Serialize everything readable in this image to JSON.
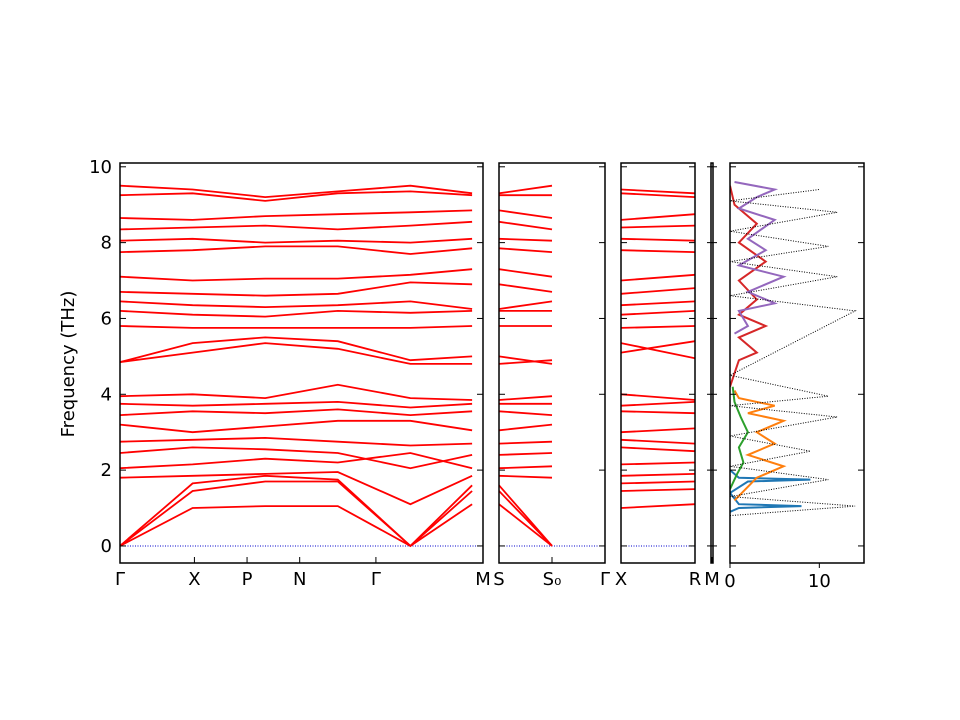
{
  "chart_data": {
    "type": "line",
    "title": "",
    "ylabel": "Frequency (THz)",
    "ylim": [
      -0.45,
      10.1
    ],
    "yticks": [
      0,
      2,
      4,
      6,
      8,
      10
    ],
    "band_color": "#ff0000",
    "zero_line_color": "#0000cc",
    "panels": [
      {
        "kind": "band",
        "xticks": [
          "Γ",
          "X",
          "P",
          "N",
          "Γ",
          "M"
        ],
        "bands": [
          {
            "x": [
              0,
              1,
              2,
              3,
              4,
              4.85
            ],
            "y": [
              0,
              1.45,
              1.7,
              1.7,
              0,
              1.45
            ]
          },
          {
            "x": [
              0,
              1,
              2,
              3,
              4,
              4.85
            ],
            "y": [
              0,
              1.65,
              1.85,
              1.75,
              0,
              1.6
            ]
          },
          {
            "x": [
              0,
              1,
              2,
              3,
              4,
              4.85
            ],
            "y": [
              0,
              1.0,
              1.05,
              1.05,
              0,
              1.1
            ]
          },
          {
            "x": [
              0,
              1,
              2,
              3,
              4,
              4.85
            ],
            "y": [
              1.8,
              1.85,
              1.9,
              1.95,
              1.1,
              1.85
            ]
          },
          {
            "x": [
              0,
              1,
              2,
              3,
              4,
              4.85
            ],
            "y": [
              2.05,
              2.15,
              2.3,
              2.2,
              2.45,
              2.05
            ]
          },
          {
            "x": [
              0,
              1,
              2,
              3,
              4,
              4.85
            ],
            "y": [
              2.45,
              2.6,
              2.55,
              2.45,
              2.05,
              2.4
            ]
          },
          {
            "x": [
              0,
              1,
              2,
              3,
              4,
              4.85
            ],
            "y": [
              2.75,
              2.8,
              2.85,
              2.75,
              2.65,
              2.7
            ]
          },
          {
            "x": [
              0,
              1,
              2,
              3,
              4,
              4.85
            ],
            "y": [
              3.2,
              3.0,
              3.15,
              3.3,
              3.3,
              3.05
            ]
          },
          {
            "x": [
              0,
              1,
              2,
              3,
              4,
              4.85
            ],
            "y": [
              3.45,
              3.55,
              3.5,
              3.6,
              3.45,
              3.55
            ]
          },
          {
            "x": [
              0,
              1,
              2,
              3,
              4,
              4.85
            ],
            "y": [
              3.75,
              3.7,
              3.75,
              3.8,
              3.65,
              3.75
            ]
          },
          {
            "x": [
              0,
              1,
              2,
              3,
              4,
              4.85
            ],
            "y": [
              3.95,
              4.0,
              3.9,
              4.25,
              3.9,
              3.85
            ]
          },
          {
            "x": [
              0,
              1,
              2,
              3,
              4,
              4.85
            ],
            "y": [
              4.85,
              5.35,
              5.5,
              5.4,
              4.9,
              5.0
            ]
          },
          {
            "x": [
              0,
              1,
              2,
              3,
              4,
              4.85
            ],
            "y": [
              4.85,
              5.1,
              5.35,
              5.2,
              4.8,
              4.8
            ]
          },
          {
            "x": [
              0,
              1,
              2,
              3,
              4,
              4.85
            ],
            "y": [
              5.8,
              5.75,
              5.75,
              5.75,
              5.75,
              5.8
            ]
          },
          {
            "x": [
              0,
              1,
              2,
              3,
              4,
              4.85
            ],
            "y": [
              6.2,
              6.1,
              6.05,
              6.2,
              6.15,
              6.2
            ]
          },
          {
            "x": [
              0,
              1,
              2,
              3,
              4,
              4.85
            ],
            "y": [
              6.45,
              6.35,
              6.3,
              6.35,
              6.45,
              6.25
            ]
          },
          {
            "x": [
              0,
              1,
              2,
              3,
              4,
              4.85
            ],
            "y": [
              6.7,
              6.65,
              6.6,
              6.65,
              6.95,
              6.9
            ]
          },
          {
            "x": [
              0,
              1,
              2,
              3,
              4,
              4.85
            ],
            "y": [
              7.1,
              7.0,
              7.05,
              7.05,
              7.15,
              7.3
            ]
          },
          {
            "x": [
              0,
              1,
              2,
              3,
              4,
              4.85
            ],
            "y": [
              7.75,
              7.8,
              7.9,
              7.9,
              7.7,
              7.85
            ]
          },
          {
            "x": [
              0,
              1,
              2,
              3,
              4,
              4.85
            ],
            "y": [
              8.05,
              8.1,
              8.0,
              8.05,
              8.0,
              8.1
            ]
          },
          {
            "x": [
              0,
              1,
              2,
              3,
              4,
              4.85
            ],
            "y": [
              8.35,
              8.4,
              8.45,
              8.35,
              8.45,
              8.55
            ]
          },
          {
            "x": [
              0,
              1,
              2,
              3,
              4,
              4.85
            ],
            "y": [
              8.65,
              8.6,
              8.7,
              8.75,
              8.8,
              8.85
            ]
          },
          {
            "x": [
              0,
              1,
              2,
              3,
              4,
              4.85
            ],
            "y": [
              9.25,
              9.3,
              9.1,
              9.3,
              9.35,
              9.25
            ]
          },
          {
            "x": [
              0,
              1,
              2,
              3,
              4,
              4.85
            ],
            "y": [
              9.5,
              9.4,
              9.2,
              9.35,
              9.5,
              9.3
            ]
          }
        ]
      },
      {
        "kind": "band",
        "xticks": [
          "S",
          "S₀",
          "Γ"
        ],
        "bands": [
          {
            "x": [
              0,
              1
            ],
            "y": [
              1.45,
              0
            ]
          },
          {
            "x": [
              0,
              1
            ],
            "y": [
              1.6,
              0
            ]
          },
          {
            "x": [
              0,
              1
            ],
            "y": [
              1.1,
              0
            ]
          },
          {
            "x": [
              0,
              1
            ],
            "y": [
              1.85,
              1.8
            ]
          },
          {
            "x": [
              0,
              1
            ],
            "y": [
              2.05,
              2.1
            ]
          },
          {
            "x": [
              0,
              1
            ],
            "y": [
              2.4,
              2.45
            ]
          },
          {
            "x": [
              0,
              1
            ],
            "y": [
              2.7,
              2.75
            ]
          },
          {
            "x": [
              0,
              1
            ],
            "y": [
              3.05,
              3.2
            ]
          },
          {
            "x": [
              0,
              1
            ],
            "y": [
              3.55,
              3.45
            ]
          },
          {
            "x": [
              0,
              1
            ],
            "y": [
              3.75,
              3.75
            ]
          },
          {
            "x": [
              0,
              1
            ],
            "y": [
              3.85,
              3.95
            ]
          },
          {
            "x": [
              0,
              1
            ],
            "y": [
              5.0,
              4.8
            ]
          },
          {
            "x": [
              0,
              1
            ],
            "y": [
              4.8,
              4.9
            ]
          },
          {
            "x": [
              0,
              1
            ],
            "y": [
              5.8,
              5.8
            ]
          },
          {
            "x": [
              0,
              1
            ],
            "y": [
              6.2,
              6.2
            ]
          },
          {
            "x": [
              0,
              1
            ],
            "y": [
              6.25,
              6.45
            ]
          },
          {
            "x": [
              0,
              1
            ],
            "y": [
              6.9,
              6.7
            ]
          },
          {
            "x": [
              0,
              1
            ],
            "y": [
              7.3,
              7.1
            ]
          },
          {
            "x": [
              0,
              1
            ],
            "y": [
              7.85,
              7.75
            ]
          },
          {
            "x": [
              0,
              1
            ],
            "y": [
              8.1,
              8.05
            ]
          },
          {
            "x": [
              0,
              1
            ],
            "y": [
              8.55,
              8.35
            ]
          },
          {
            "x": [
              0,
              1
            ],
            "y": [
              8.85,
              8.65
            ]
          },
          {
            "x": [
              0,
              1
            ],
            "y": [
              9.25,
              9.25
            ]
          },
          {
            "x": [
              0,
              1
            ],
            "y": [
              9.3,
              9.5
            ]
          }
        ]
      },
      {
        "kind": "band",
        "xticks": [
          "X",
          "R"
        ],
        "bands": [
          {
            "x": [
              0,
              1
            ],
            "y": [
              1.45,
              1.5
            ]
          },
          {
            "x": [
              0,
              1
            ],
            "y": [
              1.65,
              1.7
            ]
          },
          {
            "x": [
              0,
              1
            ],
            "y": [
              1.0,
              1.1
            ]
          },
          {
            "x": [
              0,
              1
            ],
            "y": [
              1.85,
              1.9
            ]
          },
          {
            "x": [
              0,
              1
            ],
            "y": [
              2.15,
              2.2
            ]
          },
          {
            "x": [
              0,
              1
            ],
            "y": [
              2.6,
              2.5
            ]
          },
          {
            "x": [
              0,
              1
            ],
            "y": [
              2.8,
              2.7
            ]
          },
          {
            "x": [
              0,
              1
            ],
            "y": [
              3.0,
              3.1
            ]
          },
          {
            "x": [
              0,
              1
            ],
            "y": [
              3.55,
              3.5
            ]
          },
          {
            "x": [
              0,
              1
            ],
            "y": [
              3.7,
              3.8
            ]
          },
          {
            "x": [
              0,
              1
            ],
            "y": [
              4.0,
              3.85
            ]
          },
          {
            "x": [
              0,
              1
            ],
            "y": [
              5.35,
              4.95
            ]
          },
          {
            "x": [
              0,
              1
            ],
            "y": [
              5.1,
              5.4
            ]
          },
          {
            "x": [
              0,
              1
            ],
            "y": [
              5.75,
              5.8
            ]
          },
          {
            "x": [
              0,
              1
            ],
            "y": [
              6.1,
              6.2
            ]
          },
          {
            "x": [
              0,
              1
            ],
            "y": [
              6.35,
              6.45
            ]
          },
          {
            "x": [
              0,
              1
            ],
            "y": [
              6.65,
              6.8
            ]
          },
          {
            "x": [
              0,
              1
            ],
            "y": [
              7.0,
              7.15
            ]
          },
          {
            "x": [
              0,
              1
            ],
            "y": [
              7.8,
              7.75
            ]
          },
          {
            "x": [
              0,
              1
            ],
            "y": [
              8.1,
              8.05
            ]
          },
          {
            "x": [
              0,
              1
            ],
            "y": [
              8.4,
              8.45
            ]
          },
          {
            "x": [
              0,
              1
            ],
            "y": [
              8.6,
              8.75
            ]
          },
          {
            "x": [
              0,
              1
            ],
            "y": [
              9.3,
              9.2
            ]
          },
          {
            "x": [
              0,
              1
            ],
            "y": [
              9.4,
              9.3
            ]
          }
        ]
      },
      {
        "kind": "band",
        "xticks": [
          "M"
        ],
        "bands": []
      },
      {
        "kind": "dos",
        "xticks": [
          "0",
          "10"
        ],
        "xlim": [
          0,
          15
        ],
        "series": [
          {
            "color": "#1f77b4",
            "x": [
              0,
              1,
              8,
              1,
              0,
              2,
              9,
              1,
              0
            ],
            "y": [
              0.9,
              1.0,
              1.05,
              1.1,
              1.4,
              1.7,
              1.75,
              1.8,
              2.0
            ]
          },
          {
            "color": "#ff7f0e",
            "x": [
              0.5,
              3,
              6,
              2,
              5,
              3,
              6,
              2,
              5,
              1,
              0.5
            ],
            "y": [
              1.2,
              1.8,
              2.1,
              2.4,
              2.7,
              3.0,
              3.3,
              3.5,
              3.7,
              3.9,
              4.1
            ]
          },
          {
            "color": "#2ca02c",
            "x": [
              0,
              0.8,
              1.5,
              1.0,
              2.0,
              1.2,
              0.5,
              0.3
            ],
            "y": [
              1.5,
              1.9,
              2.2,
              2.6,
              3.0,
              3.4,
              3.8,
              4.2
            ]
          },
          {
            "color": "#d62728",
            "x": [
              0,
              1,
              3,
              1,
              4,
              1,
              3,
              1,
              4,
              1,
              3,
              0.5,
              0
            ],
            "y": [
              4.2,
              4.9,
              5.1,
              5.5,
              5.8,
              6.1,
              6.5,
              7.0,
              7.5,
              8.0,
              8.5,
              9.0,
              9.5
            ]
          },
          {
            "color": "#9467bd",
            "x": [
              0.5,
              2,
              1,
              5,
              2,
              6,
              1,
              4,
              2,
              5,
              1,
              3,
              5,
              0.5
            ],
            "y": [
              5.6,
              5.8,
              6.2,
              6.4,
              6.7,
              7.1,
              7.4,
              7.8,
              8.1,
              8.6,
              8.9,
              9.2,
              9.4,
              9.6
            ]
          },
          {
            "color": "#000000",
            "dotted": true,
            "x": [
              0,
              14,
              0,
              11,
              0,
              9,
              0,
              12,
              0,
              11,
              0,
              14,
              0,
              12,
              0,
              11,
              0,
              12,
              0,
              10
            ],
            "y": [
              0.8,
              1.05,
              1.3,
              1.75,
              2.1,
              2.5,
              2.9,
              3.4,
              3.7,
              3.95,
              4.5,
              6.2,
              6.6,
              7.1,
              7.5,
              7.9,
              8.3,
              8.8,
              9.1,
              9.4
            ]
          }
        ]
      }
    ]
  }
}
